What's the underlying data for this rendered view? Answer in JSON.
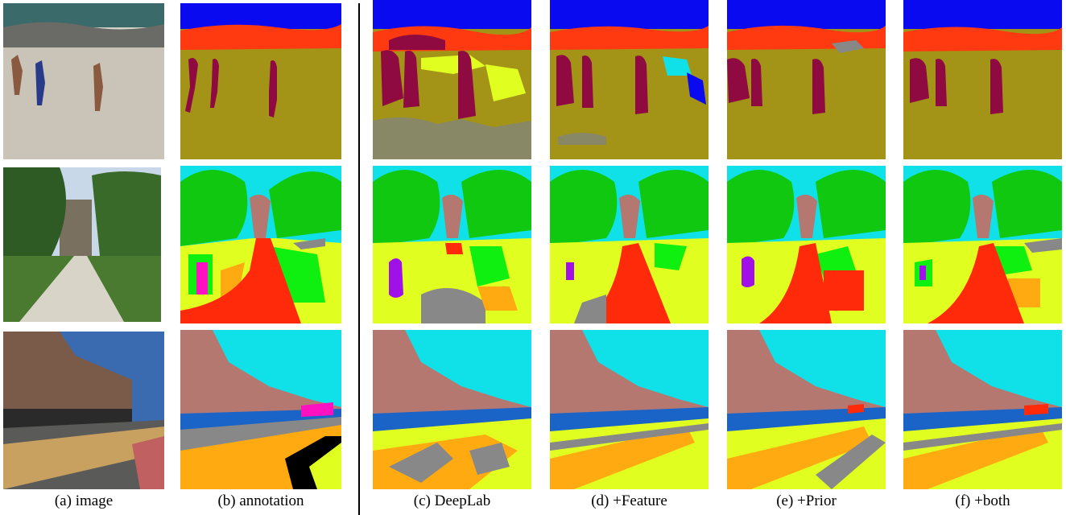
{
  "figure": {
    "columns": [
      {
        "id": "image",
        "label": "(a) image",
        "kind": "photo"
      },
      {
        "id": "annotation",
        "label": "(b) annotation",
        "kind": "segmentation"
      },
      {
        "id": "deeplab",
        "label": "(c) DeepLab",
        "kind": "segmentation"
      },
      {
        "id": "feature",
        "label": "(d) +Feature",
        "kind": "segmentation"
      },
      {
        "id": "prior",
        "label": "(e) +Prior",
        "kind": "segmentation"
      },
      {
        "id": "both",
        "label": "(f) +both",
        "kind": "segmentation"
      }
    ],
    "rows": [
      {
        "id": "beach",
        "scene": "beach with runners"
      },
      {
        "id": "park",
        "scene": "park path with trees"
      },
      {
        "id": "street",
        "scene": "street with shops and cars"
      }
    ],
    "palette": {
      "sky": "#0a0af0",
      "sky_light": "#10e0e8",
      "sea_rock": "#ff3a10",
      "sand": "#a39418",
      "person": "#8e0a40",
      "tree": "#10c810",
      "grass": "#e0ff20",
      "grass_green": "#10f010",
      "road_red": "#ff2a0a",
      "orange": "#ffaa10",
      "building": "#b47870",
      "car": "#1a64c8",
      "gray": "#888888",
      "magenta": "#ff10c0",
      "purple": "#a010e8",
      "black": "#000000"
    }
  }
}
